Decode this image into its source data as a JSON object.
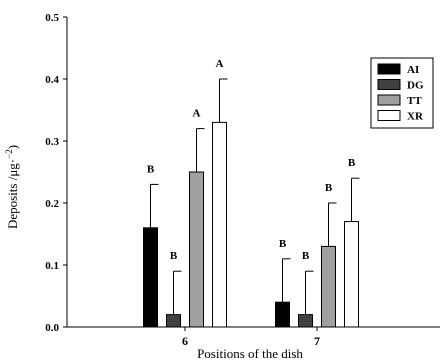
{
  "chart_data": {
    "type": "bar",
    "categories": [
      "6",
      "7"
    ],
    "xlabel": "Positions of the dish",
    "ylabel": "Deposits /μg·",
    "ylabel_exponent": "−2",
    "ylim": [
      0,
      0.5
    ],
    "yticks": [
      0.0,
      0.1,
      0.2,
      0.3,
      0.4,
      0.5
    ],
    "ytick_labels": [
      "0.0",
      "0.1",
      "0.2",
      "0.3",
      "0.4",
      "0.5"
    ],
    "grid": false,
    "legend_position": "top-right",
    "series": [
      {
        "name": "AI",
        "color": "#000000",
        "values": [
          0.16,
          0.04
        ],
        "errors": [
          0.07,
          0.07
        ],
        "labels": [
          "B",
          "B"
        ]
      },
      {
        "name": "DG",
        "color": "#404040",
        "values": [
          0.02,
          0.02
        ],
        "errors": [
          0.07,
          0.07
        ],
        "labels": [
          "B",
          "B"
        ]
      },
      {
        "name": "TT",
        "color": "#a0a0a0",
        "values": [
          0.25,
          0.13
        ],
        "errors": [
          0.07,
          0.07
        ],
        "labels": [
          "A",
          "B"
        ]
      },
      {
        "name": "XR",
        "color": "#ffffff",
        "values": [
          0.33,
          0.17
        ],
        "errors": [
          0.07,
          0.07
        ],
        "labels": [
          "A",
          "B"
        ]
      }
    ]
  }
}
